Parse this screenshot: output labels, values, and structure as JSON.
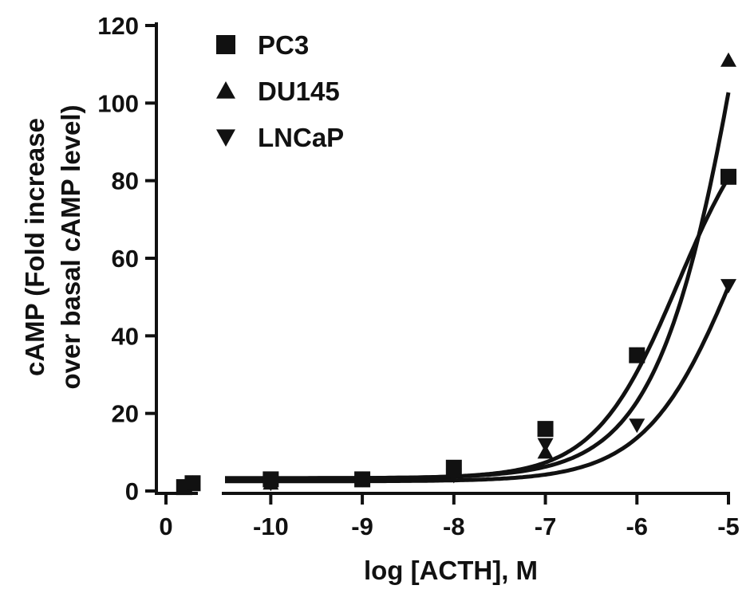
{
  "chart_data": {
    "type": "scatter",
    "title": "",
    "xlabel": "log [ACTH], M",
    "ylabel": [
      "cAMP (Fold increase",
      "over basal cAMP level)"
    ],
    "ylim": [
      0,
      120
    ],
    "yticks": [
      "0",
      "20",
      "40",
      "60",
      "80",
      "100",
      "120"
    ],
    "x_segments": [
      {
        "range": [
          0,
          0.25
        ],
        "ticks": [
          "0"
        ]
      },
      {
        "range": [
          -10.5,
          -5
        ],
        "ticks": [
          "-10",
          "-9",
          "-8",
          "-7",
          "-6",
          "-5"
        ]
      }
    ],
    "legend_position": "top-left",
    "marker_color": "#111111",
    "series": [
      {
        "name": "PC3",
        "marker": "square",
        "points": [
          {
            "x": 0.15,
            "y": 1
          },
          {
            "x": 0.22,
            "y": 2
          },
          {
            "x": -10,
            "y": 3
          },
          {
            "x": -9,
            "y": 3
          },
          {
            "x": -8,
            "y": 6
          },
          {
            "x": -7,
            "y": 16
          },
          {
            "x": -6,
            "y": 35
          },
          {
            "x": -5,
            "y": 81
          }
        ],
        "fit": {
          "bottom": 3.3,
          "top": 104,
          "logEC50": -5.55,
          "hill": 0.95
        }
      },
      {
        "name": "DU145",
        "marker": "triangle-up",
        "points": [
          {
            "x": 0.15,
            "y": 1
          },
          {
            "x": 0.22,
            "y": 2
          },
          {
            "x": -10,
            "y": 2
          },
          {
            "x": -9,
            "y": 3
          },
          {
            "x": -8,
            "y": 5
          },
          {
            "x": -7,
            "y": 10
          },
          {
            "x": -6,
            "y": 35
          },
          {
            "x": -5,
            "y": 111
          }
        ],
        "fit": {
          "bottom": 3.3,
          "top": 300,
          "logEC50": -4.65,
          "hill": 0.85
        }
      },
      {
        "name": "LNCaP",
        "marker": "triangle-down",
        "points": [
          {
            "x": 0.15,
            "y": 1
          },
          {
            "x": 0.22,
            "y": 2
          },
          {
            "x": -10,
            "y": 2
          },
          {
            "x": -9,
            "y": 3
          },
          {
            "x": -8,
            "y": 4
          },
          {
            "x": -7,
            "y": 12
          },
          {
            "x": -6,
            "y": 17
          },
          {
            "x": -5,
            "y": 53
          }
        ],
        "fit": {
          "bottom": 2.5,
          "top": 120,
          "logEC50": -4.85,
          "hill": 0.85
        }
      }
    ]
  }
}
